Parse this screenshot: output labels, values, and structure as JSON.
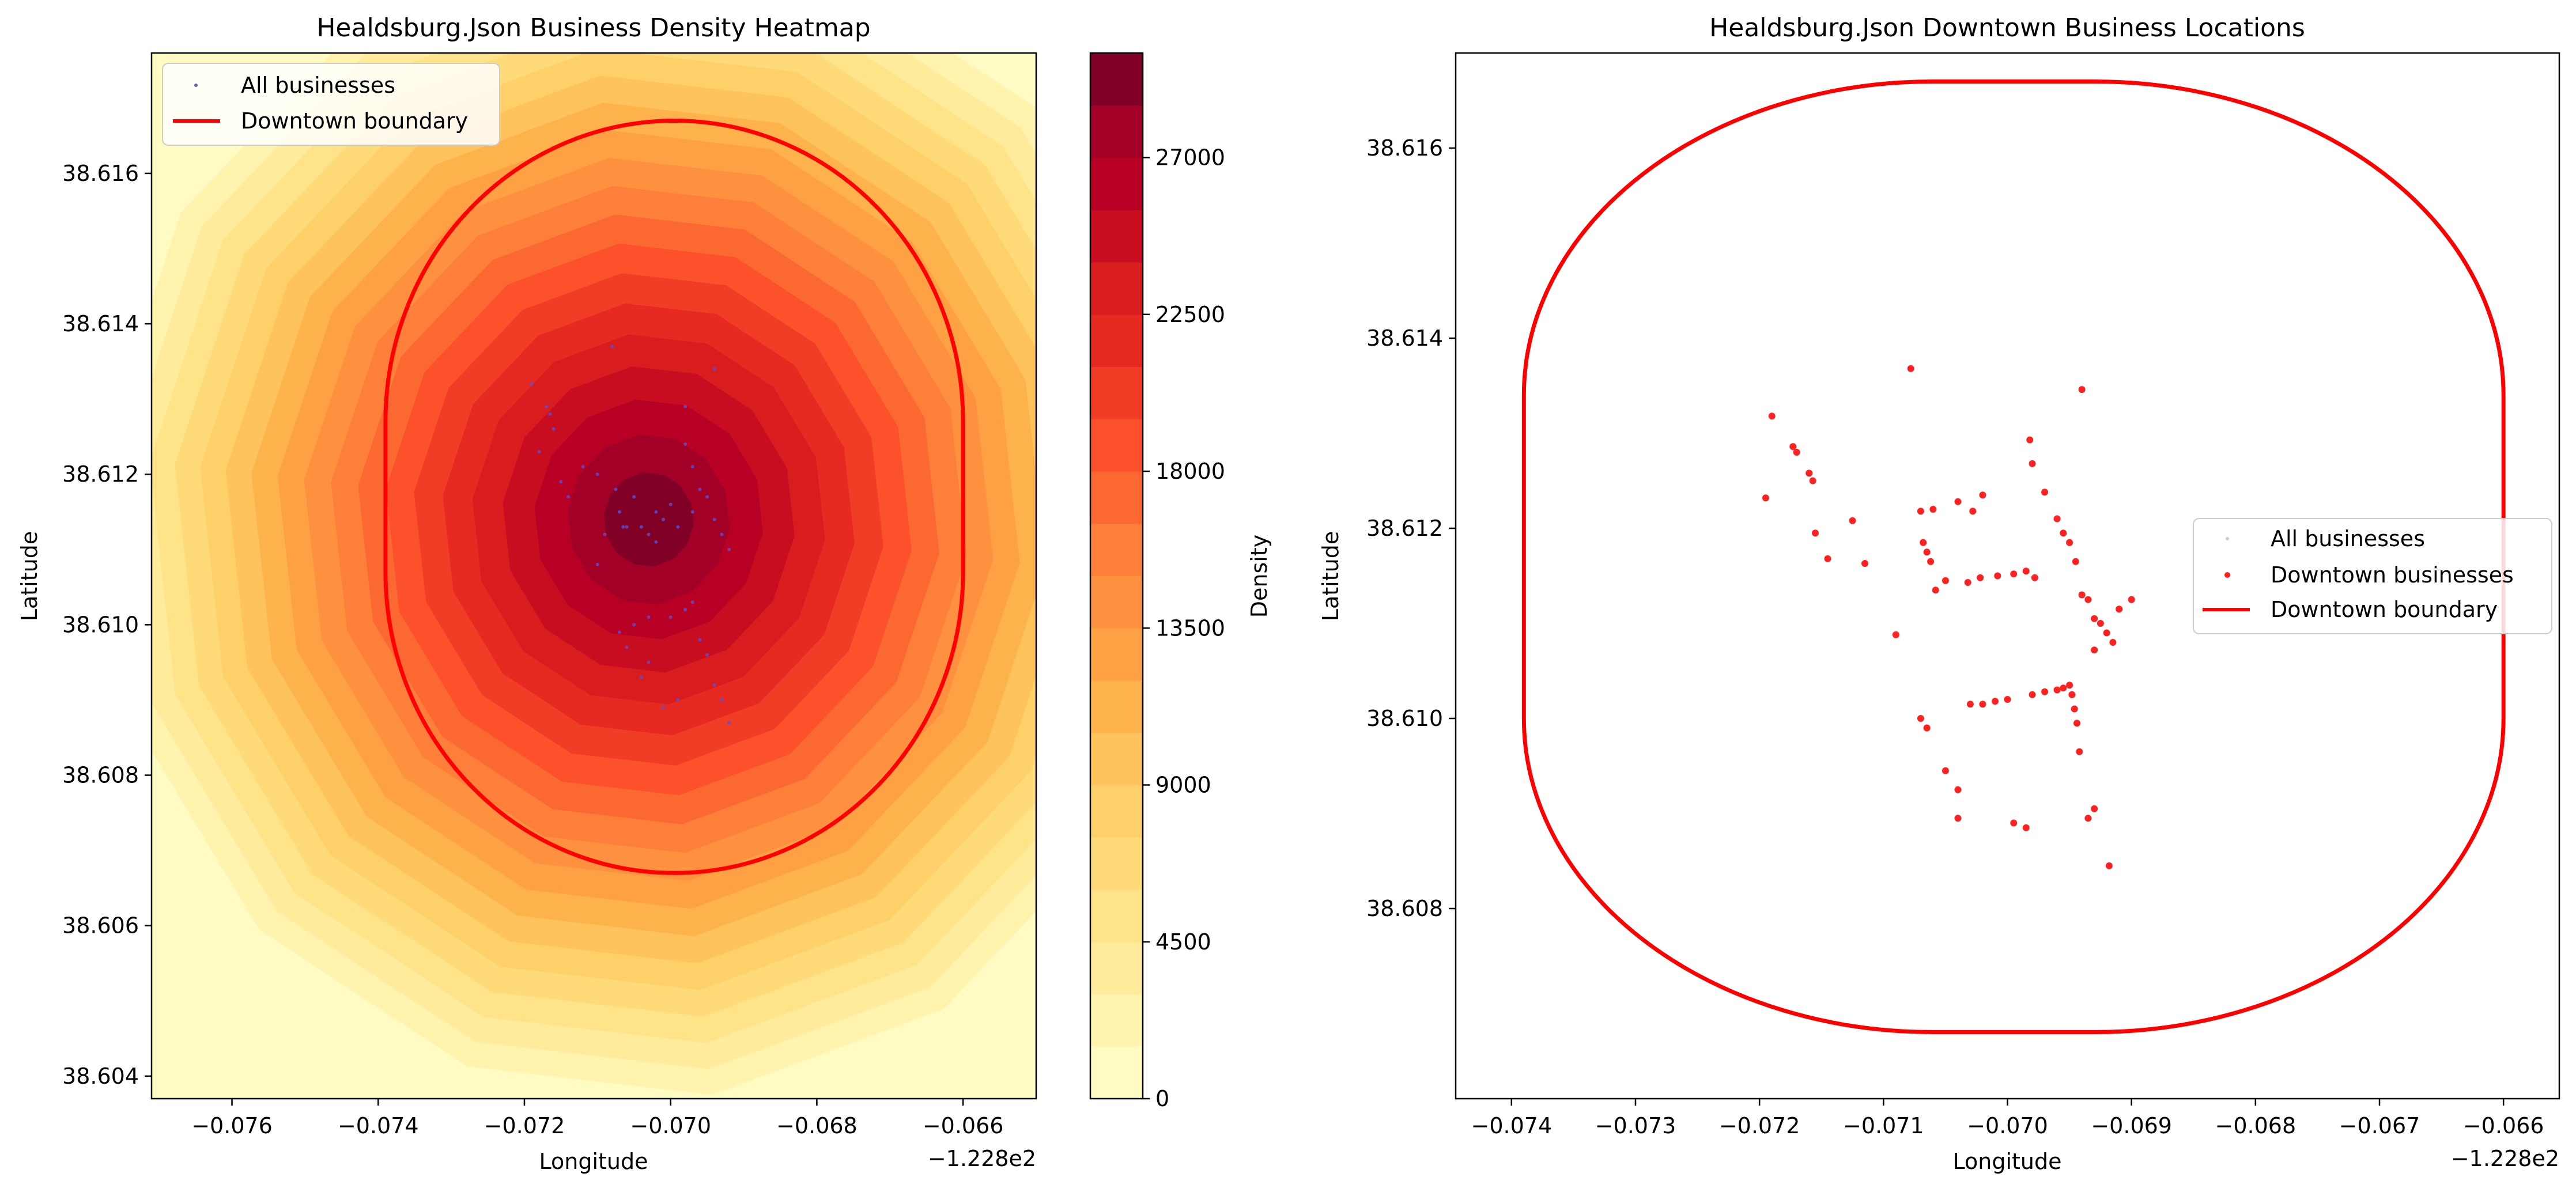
{
  "chart_data": [
    {
      "type": "heatmap",
      "title": "Healdsburg.Json Business Density Heatmap",
      "xlabel": "Longitude",
      "ylabel": "Latitude",
      "xoffset_label": "−1.228e2",
      "xlim": [
        -0.0771,
        -0.065
      ],
      "ylim": [
        38.6037,
        38.6176
      ],
      "xticks": [
        -0.076,
        -0.074,
        -0.072,
        -0.07,
        -0.068,
        -0.066
      ],
      "xtick_labels": [
        "−0.076",
        "−0.074",
        "−0.072",
        "−0.070",
        "−0.068",
        "−0.066"
      ],
      "yticks": [
        38.604,
        38.606,
        38.608,
        38.61,
        38.612,
        38.614,
        38.616
      ],
      "ytick_labels": [
        "38.604",
        "38.606",
        "38.608",
        "38.610",
        "38.612",
        "38.614",
        "38.616"
      ],
      "legend": {
        "placement": "upper-left",
        "entries": [
          "All businesses",
          "Downtown boundary"
        ]
      },
      "colorbar": {
        "label": "Density",
        "range": [
          0,
          30000
        ],
        "level_step": 1500,
        "ticks": [
          0,
          4500,
          9000,
          13500,
          18000,
          22500,
          27000
        ],
        "tick_labels": [
          "0",
          "4500",
          "9000",
          "13500",
          "18000",
          "22500",
          "27000"
        ],
        "colors": [
          "#fffbc2",
          "#fff3ae",
          "#ffeb9b",
          "#fee388",
          "#fedb78",
          "#fed06a",
          "#fec35c",
          "#feb24c",
          "#fea145",
          "#fd913f",
          "#fd7f39",
          "#fc6832",
          "#fc512b",
          "#f23d26",
          "#e62a22",
          "#d91c1e",
          "#c90d21",
          "#b70024",
          "#a20026",
          "#800026"
        ]
      },
      "density_peak": {
        "x": -0.0703,
        "y": 38.6114,
        "value": 30000
      },
      "boundary": {
        "x_range": [
          -0.0739,
          -0.066
        ],
        "y_range": [
          38.6067,
          38.6167
        ],
        "corner_radius": 0.004
      },
      "points": [
        [
          -0.0719,
          38.6132
        ],
        [
          -0.0718,
          38.6123
        ],
        [
          -0.0717,
          38.6129
        ],
        [
          -0.07165,
          38.6128
        ],
        [
          -0.0716,
          38.6126
        ],
        [
          -0.0715,
          38.6119
        ],
        [
          -0.0714,
          38.6117
        ],
        [
          -0.0712,
          38.6121
        ],
        [
          -0.071,
          38.612
        ],
        [
          -0.0709,
          38.6112
        ],
        [
          -0.0708,
          38.6137
        ],
        [
          -0.07075,
          38.6118
        ],
        [
          -0.0707,
          38.6115
        ],
        [
          -0.0706,
          38.6113
        ],
        [
          -0.0705,
          38.6117
        ],
        [
          -0.0704,
          38.6113
        ],
        [
          -0.0703,
          38.6112
        ],
        [
          -0.0702,
          38.6115
        ],
        [
          -0.0701,
          38.6114
        ],
        [
          -0.07,
          38.6116
        ],
        [
          -0.0699,
          38.6113
        ],
        [
          -0.0698,
          38.6124
        ],
        [
          -0.0697,
          38.6121
        ],
        [
          -0.0696,
          38.6118
        ],
        [
          -0.0695,
          38.6117
        ],
        [
          -0.0694,
          38.6114
        ],
        [
          -0.0693,
          38.6112
        ],
        [
          -0.0692,
          38.611
        ],
        [
          -0.0694,
          38.6134
        ],
        [
          -0.0698,
          38.6129
        ],
        [
          -0.0705,
          38.61
        ],
        [
          -0.0703,
          38.6101
        ],
        [
          -0.07,
          38.6101
        ],
        [
          -0.0698,
          38.6102
        ],
        [
          -0.0697,
          38.6103
        ],
        [
          -0.0696,
          38.6098
        ],
        [
          -0.0695,
          38.6096
        ],
        [
          -0.0694,
          38.6092
        ],
        [
          -0.0693,
          38.609
        ],
        [
          -0.0692,
          38.6087
        ],
        [
          -0.0707,
          38.6099
        ],
        [
          -0.0706,
          38.6097
        ],
        [
          -0.0704,
          38.6093
        ],
        [
          -0.0703,
          38.6095
        ],
        [
          -0.0701,
          38.6089
        ],
        [
          -0.0699,
          38.609
        ],
        [
          -0.071,
          38.6108
        ],
        [
          -0.07065,
          38.6113
        ],
        [
          -0.0702,
          38.6111
        ],
        [
          -0.0697,
          38.6115
        ]
      ]
    },
    {
      "type": "scatter",
      "title": "Healdsburg.Json Downtown Business Locations",
      "xlabel": "Longitude",
      "ylabel": "Latitude",
      "xoffset_label": "−1.228e2",
      "xlim": [
        -0.07445,
        -0.06555
      ],
      "ylim": [
        38.606,
        38.617
      ],
      "xticks": [
        -0.074,
        -0.073,
        -0.072,
        -0.071,
        -0.07,
        -0.069,
        -0.068,
        -0.067,
        -0.066
      ],
      "xtick_labels": [
        "−0.074",
        "−0.073",
        "−0.072",
        "−0.071",
        "−0.070",
        "−0.069",
        "−0.068",
        "−0.067",
        "−0.066"
      ],
      "yticks": [
        38.608,
        38.61,
        38.612,
        38.614,
        38.616
      ],
      "ytick_labels": [
        "38.608",
        "38.610",
        "38.612",
        "38.614",
        "38.616"
      ],
      "legend": {
        "placement": "center-right",
        "entries": [
          "All businesses",
          "Downtown businesses",
          "Downtown boundary"
        ]
      },
      "boundary": {
        "x_range": [
          -0.0739,
          -0.066
        ],
        "y_range": [
          38.6067,
          38.6167
        ],
        "corner_radius": 0.0033
      },
      "points": [
        [
          -0.07195,
          38.61232
        ],
        [
          -0.0719,
          38.61318
        ],
        [
          -0.07173,
          38.61286
        ],
        [
          -0.0717,
          38.6128
        ],
        [
          -0.0716,
          38.61258
        ],
        [
          -0.07157,
          38.6125
        ],
        [
          -0.07155,
          38.61195
        ],
        [
          -0.07145,
          38.61168
        ],
        [
          -0.07125,
          38.61208
        ],
        [
          -0.07115,
          38.61163
        ],
        [
          -0.0709,
          38.61088
        ],
        [
          -0.07078,
          38.61368
        ],
        [
          -0.0707,
          38.61218
        ],
        [
          -0.07068,
          38.61185
        ],
        [
          -0.07065,
          38.61175
        ],
        [
          -0.07062,
          38.61165
        ],
        [
          -0.0706,
          38.6122
        ],
        [
          -0.07058,
          38.61135
        ],
        [
          -0.0705,
          38.61145
        ],
        [
          -0.0704,
          38.61228
        ],
        [
          -0.07032,
          38.61143
        ],
        [
          -0.07028,
          38.61218
        ],
        [
          -0.07022,
          38.61148
        ],
        [
          -0.0702,
          38.61235
        ],
        [
          -0.07008,
          38.6115
        ],
        [
          -0.06995,
          38.61152
        ],
        [
          -0.06985,
          38.61155
        ],
        [
          -0.06978,
          38.61148
        ],
        [
          -0.06982,
          38.61293
        ],
        [
          -0.0698,
          38.61268
        ],
        [
          -0.0697,
          38.61238
        ],
        [
          -0.0696,
          38.6121
        ],
        [
          -0.06955,
          38.61195
        ],
        [
          -0.0695,
          38.61185
        ],
        [
          -0.06945,
          38.61165
        ],
        [
          -0.0694,
          38.6113
        ],
        [
          -0.06935,
          38.61125
        ],
        [
          -0.0693,
          38.61105
        ],
        [
          -0.06925,
          38.611
        ],
        [
          -0.0692,
          38.6109
        ],
        [
          -0.06915,
          38.6108
        ],
        [
          -0.0691,
          38.61115
        ],
        [
          -0.069,
          38.61125
        ],
        [
          -0.0693,
          38.61072
        ],
        [
          -0.0694,
          38.61346
        ],
        [
          -0.0707,
          38.61
        ],
        [
          -0.07065,
          38.6099
        ],
        [
          -0.0705,
          38.60945
        ],
        [
          -0.0704,
          38.60925
        ],
        [
          -0.0704,
          38.60895
        ],
        [
          -0.0703,
          38.61015
        ],
        [
          -0.0702,
          38.61015
        ],
        [
          -0.0701,
          38.61018
        ],
        [
          -0.07,
          38.6102
        ],
        [
          -0.0698,
          38.61025
        ],
        [
          -0.0697,
          38.61028
        ],
        [
          -0.0696,
          38.6103
        ],
        [
          -0.06955,
          38.61032
        ],
        [
          -0.0695,
          38.61035
        ],
        [
          -0.06948,
          38.61025
        ],
        [
          -0.06946,
          38.6101
        ],
        [
          -0.06944,
          38.60995
        ],
        [
          -0.06942,
          38.60965
        ],
        [
          -0.06935,
          38.60895
        ],
        [
          -0.0693,
          38.60905
        ],
        [
          -0.06918,
          38.60845
        ],
        [
          -0.06995,
          38.6089
        ],
        [
          -0.06985,
          38.60885
        ]
      ]
    }
  ]
}
